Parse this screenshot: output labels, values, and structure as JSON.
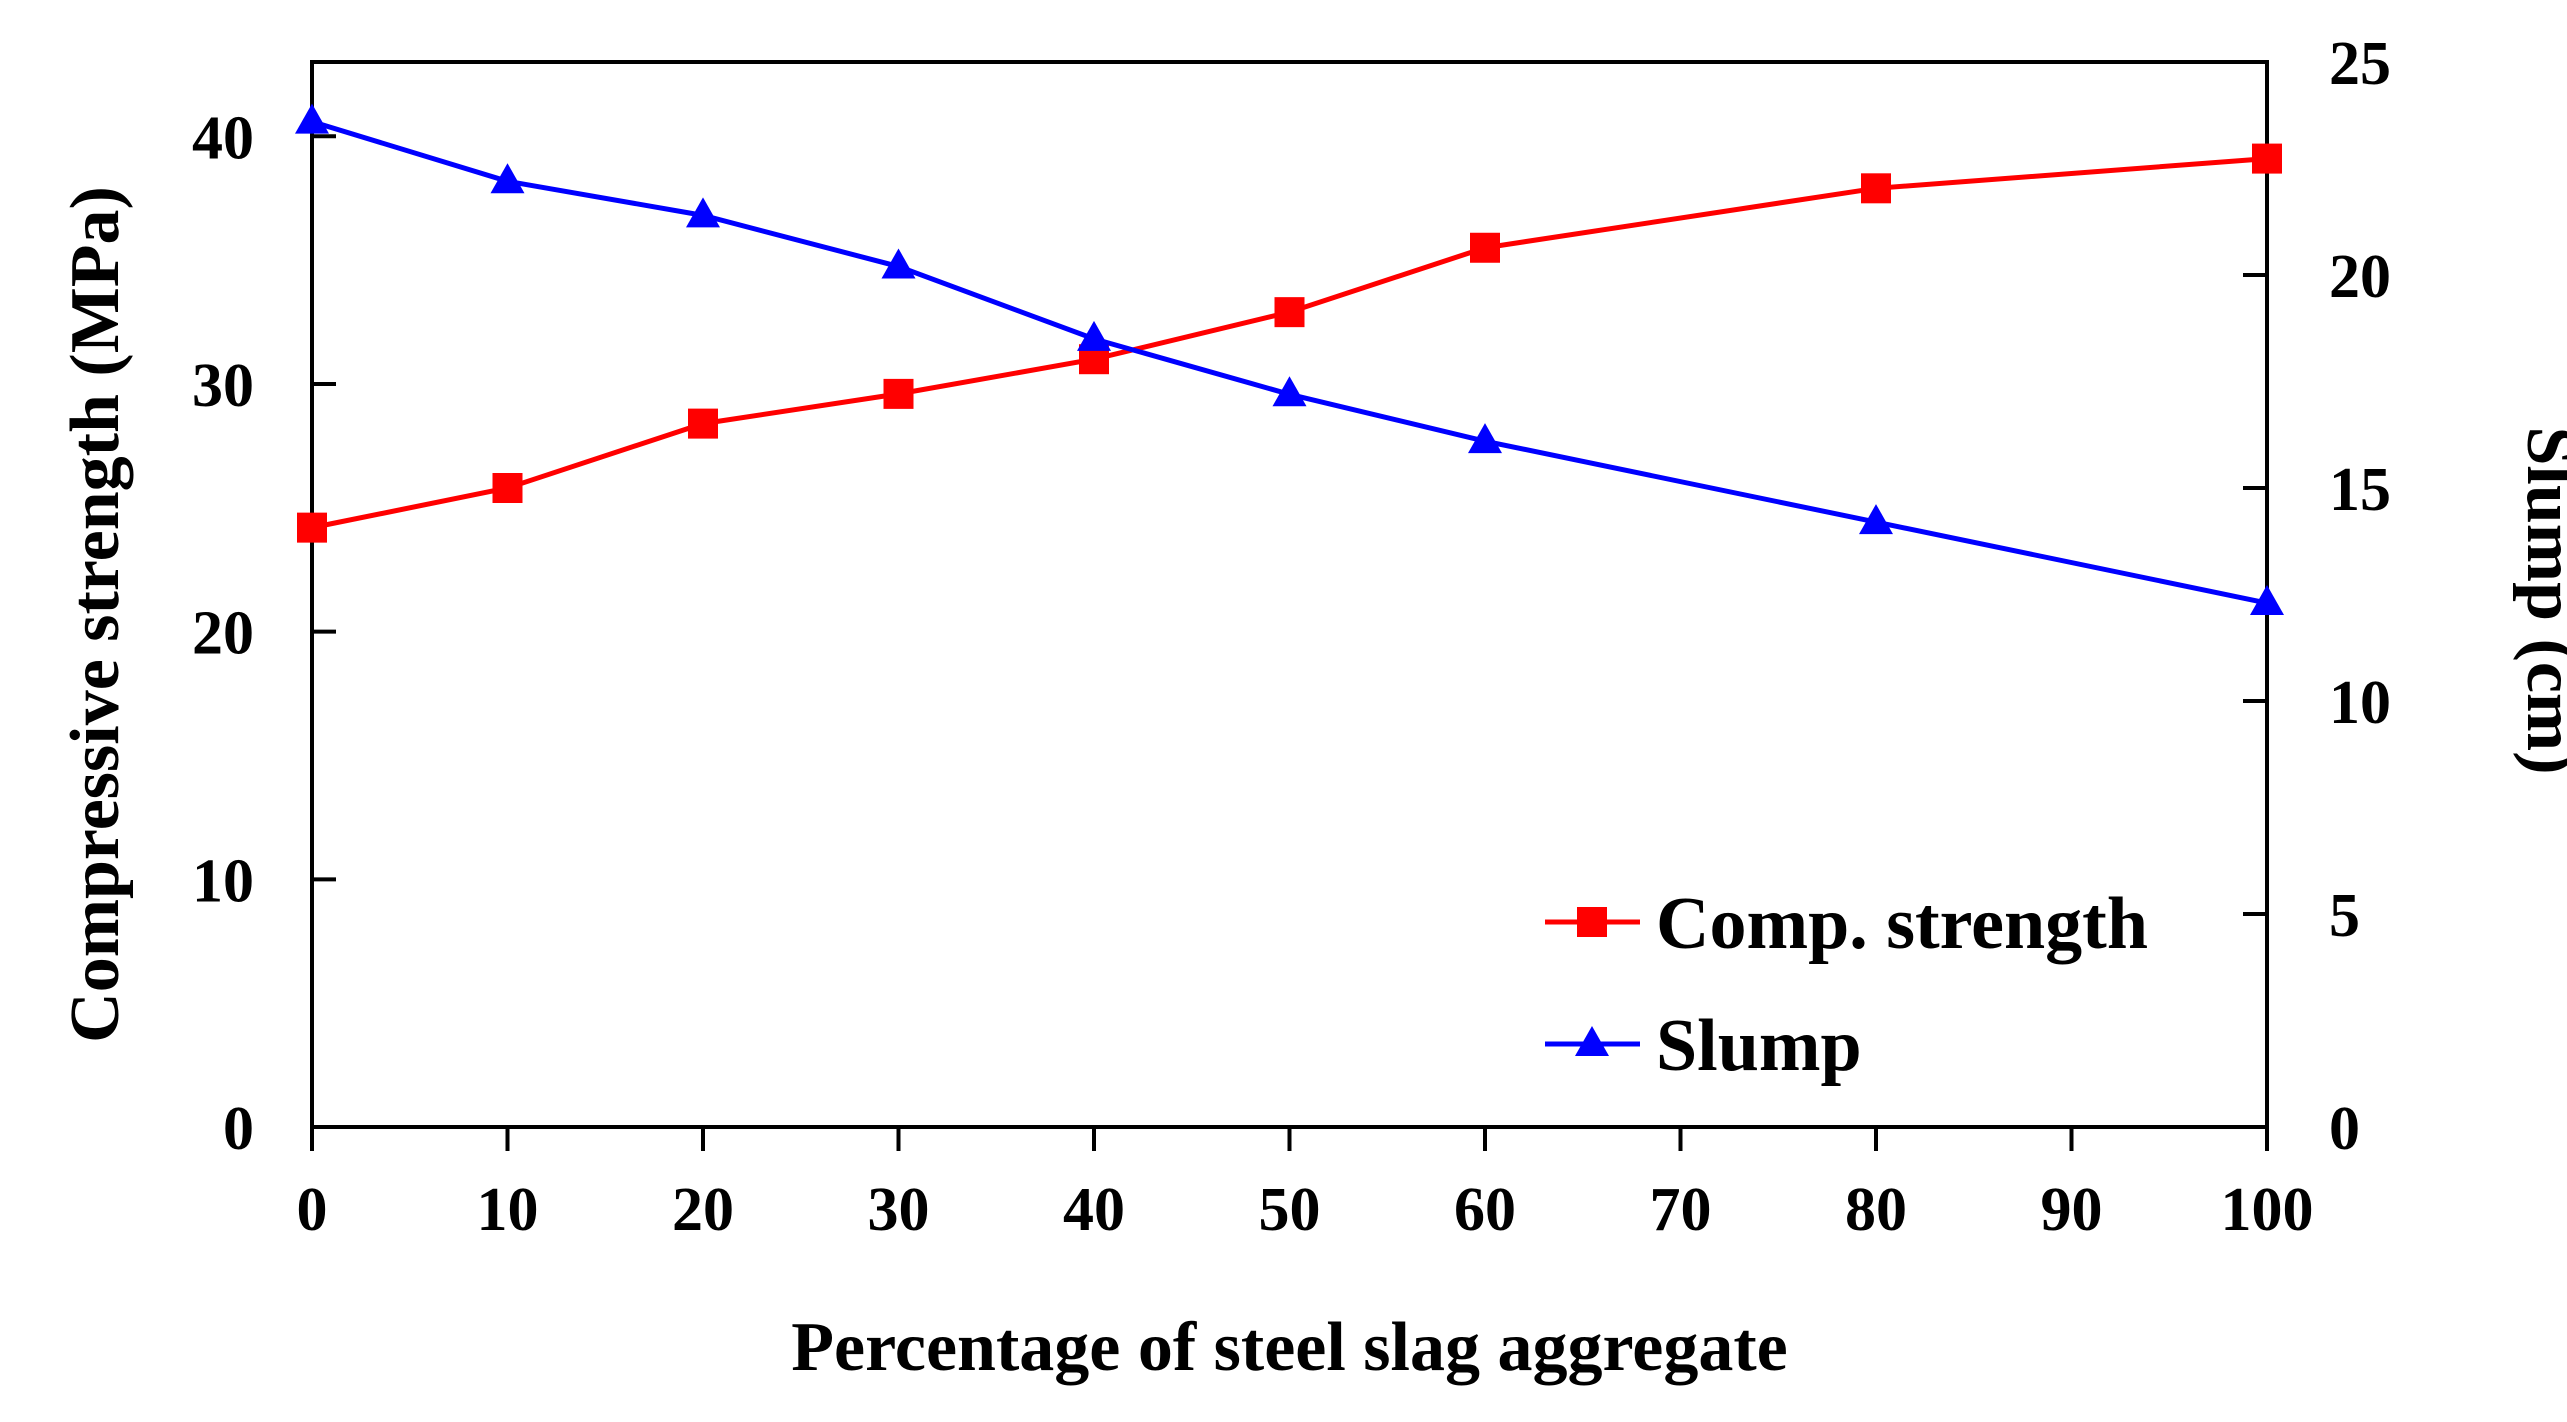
{
  "chart_data": {
    "type": "line",
    "title": "",
    "xlabel": "Percentage of steel slag aggregate",
    "ylabel": "Compressive strength (MPa)",
    "y2label": "Slump (cm)",
    "xlim": [
      0,
      100
    ],
    "ylim": [
      0,
      43
    ],
    "y2lim": [
      0,
      25
    ],
    "xticks": [
      0,
      10,
      20,
      30,
      40,
      50,
      60,
      70,
      80,
      90,
      100
    ],
    "yticks": [
      0,
      10,
      20,
      30,
      40
    ],
    "y2ticks": [
      0,
      5,
      10,
      15,
      20,
      25
    ],
    "grid": false,
    "legend_position": "bottom-right",
    "series": [
      {
        "name": "Comp. strength",
        "axis": "left",
        "color": "#ff0000",
        "marker": "square",
        "x": [
          0,
          10,
          20,
          30,
          40,
          50,
          60,
          80,
          100
        ],
        "values": [
          24.2,
          25.8,
          28.4,
          29.6,
          31.0,
          32.9,
          35.5,
          37.9,
          39.1
        ]
      },
      {
        "name": "Slump",
        "axis": "right",
        "color": "#0000ff",
        "marker": "triangle",
        "x": [
          0,
          10,
          20,
          30,
          40,
          50,
          60,
          80,
          100
        ],
        "values": [
          23.6,
          22.2,
          21.4,
          20.2,
          18.5,
          17.2,
          16.1,
          14.2,
          12.3
        ]
      }
    ]
  }
}
